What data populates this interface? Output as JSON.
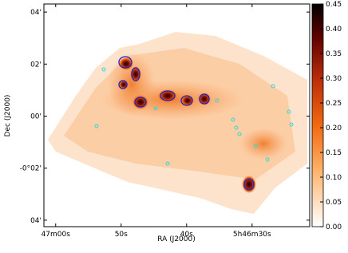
{
  "chart_data": {
    "type": "image",
    "x_label": "RA (J2000)",
    "y_label": "Dec (J2000)",
    "xlim": [
      61.8,
      21.2
    ],
    "xticks": [
      {
        "value": 60,
        "label": "47m00s"
      },
      {
        "value": 50,
        "label": "50s"
      },
      {
        "value": 40,
        "label": "40s"
      },
      {
        "value": 30,
        "label": "5h46m30s"
      }
    ],
    "ylim": [
      -4.25,
      4.31
    ],
    "yticks": [
      {
        "value": 4,
        "label": "04'"
      },
      {
        "value": 2,
        "label": "02'"
      },
      {
        "value": 0,
        "label": "00'"
      },
      {
        "value": -2,
        "label": "-0°02'"
      },
      {
        "value": -4,
        "label": "04'"
      }
    ],
    "colorbar": {
      "colormap": "gist_heat_r",
      "lim": [
        0,
        0.45
      ],
      "ticks": [
        {
          "value": 0,
          "label": "0.00"
        },
        {
          "value": 0.05,
          "label": "0.05"
        },
        {
          "value": 0.1,
          "label": "0.10"
        },
        {
          "value": 0.15,
          "label": "0.15"
        },
        {
          "value": 0.2,
          "label": "0.20"
        },
        {
          "value": 0.25,
          "label": "0.25"
        },
        {
          "value": 0.3,
          "label": "0.30"
        },
        {
          "value": 0.35,
          "label": "0.35"
        },
        {
          "value": 0.4,
          "label": "0.40"
        },
        {
          "value": 0.45,
          "label": "0.45"
        }
      ]
    }
  }
}
